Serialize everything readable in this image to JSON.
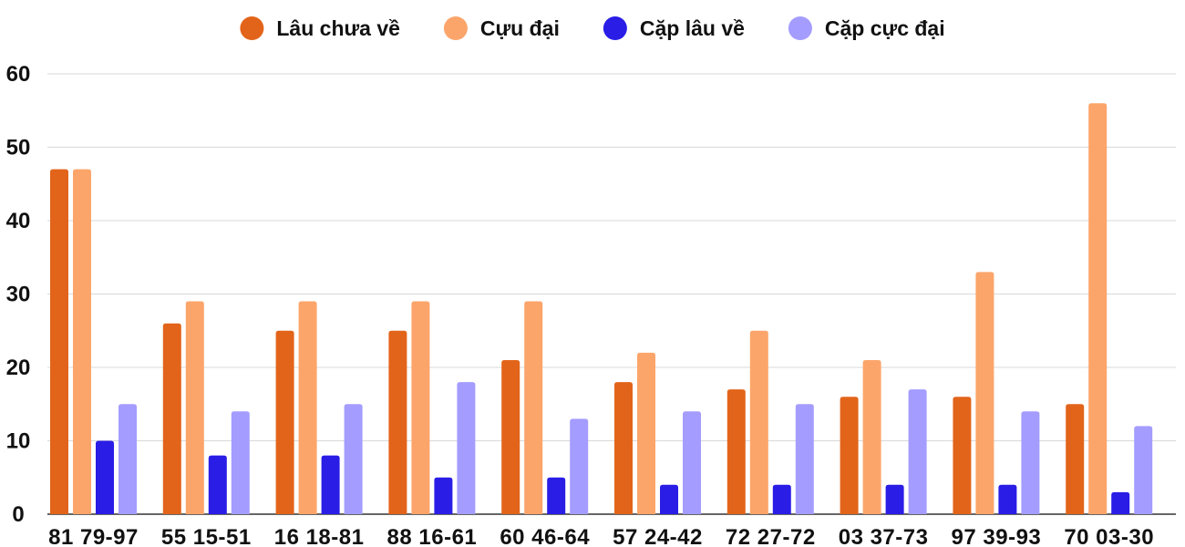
{
  "chart_data": {
    "type": "bar",
    "title": "",
    "xlabel": "",
    "ylabel": "",
    "ylim": [
      0,
      60
    ],
    "yticks": [
      0,
      10,
      20,
      30,
      40,
      50,
      60
    ],
    "grid": true,
    "legend_position": "top",
    "categories": [
      "81 79-97",
      "55 15-51",
      "16 18-81",
      "88 16-61",
      "60 46-64",
      "57 24-42",
      "72 27-72",
      "03 37-73",
      "97 39-93",
      "70 03-30"
    ],
    "series": [
      {
        "name": "Lâu chưa về",
        "color": "#e2641a",
        "values": [
          47,
          26,
          25,
          25,
          21,
          18,
          17,
          16,
          16,
          15
        ]
      },
      {
        "name": "Cựu đại",
        "color": "#fca56a",
        "values": [
          47,
          29,
          29,
          29,
          29,
          22,
          25,
          21,
          33,
          56
        ]
      },
      {
        "name": "Cặp lâu về",
        "color": "#2a1de6",
        "values": [
          10,
          8,
          8,
          5,
          5,
          4,
          4,
          4,
          4,
          3
        ]
      },
      {
        "name": "Cặp cực đại",
        "color": "#a49cff",
        "values": [
          15,
          14,
          15,
          18,
          13,
          14,
          15,
          17,
          14,
          12
        ]
      }
    ]
  }
}
